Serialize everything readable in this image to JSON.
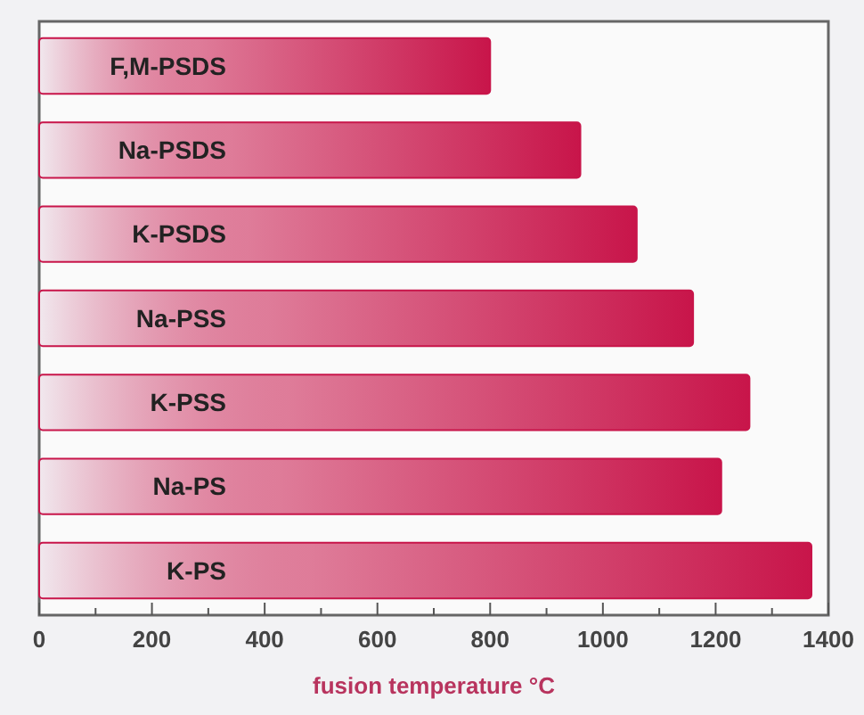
{
  "chart_data": {
    "type": "bar",
    "orientation": "horizontal",
    "xlabel": "fusion temperature °C",
    "categories": [
      "F,M-PSDS",
      "Na-PSDS",
      "K-PSDS",
      "Na-PSS",
      "K-PSS",
      "Na-PS",
      "K-PS"
    ],
    "values": [
      800,
      960,
      1060,
      1160,
      1260,
      1210,
      1370
    ],
    "color": "#c8154a",
    "xlim": [
      0,
      1400
    ],
    "xticks": [
      0,
      {
        "value": 100,
        "label": null
      },
      200,
      {
        "value": 300,
        "label": null
      },
      400,
      {
        "value": 500,
        "label": null
      },
      600,
      {
        "value": 700,
        "label": null
      },
      800,
      {
        "value": 900,
        "label": null
      },
      1000,
      {
        "value": 1100,
        "label": null
      },
      1200,
      {
        "value": 1300,
        "label": null
      },
      1400
    ]
  }
}
